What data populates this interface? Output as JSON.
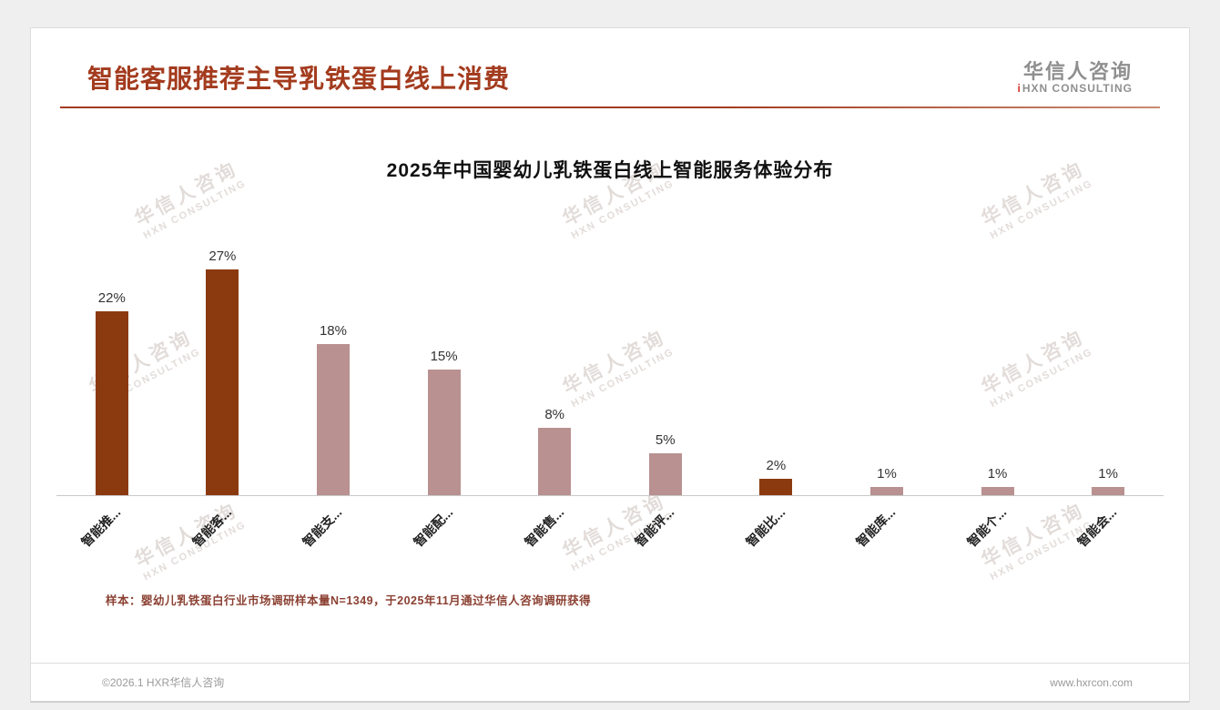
{
  "header": {
    "title": "智能客服推荐主导乳铁蛋白线上消费",
    "logo": {
      "accent": "i",
      "cn": "华信人咨询",
      "en": "HXN CONSULTING"
    }
  },
  "watermark": {
    "line1": "华信人咨询",
    "line2": "HXN CONSULTING"
  },
  "chart_data": {
    "type": "bar",
    "title": "2025年中国婴幼儿乳铁蛋白线上智能服务体验分布",
    "categories": [
      "智能推...",
      "智能客...",
      "智能支...",
      "智能配...",
      "智能售...",
      "智能评...",
      "智能比...",
      "智能库...",
      "智能个...",
      "智能会..."
    ],
    "values": [
      22,
      27,
      18,
      15,
      8,
      5,
      2,
      1,
      1,
      1
    ],
    "value_labels": [
      "22%",
      "27%",
      "18%",
      "15%",
      "8%",
      "5%",
      "2%",
      "1%",
      "1%",
      "1%"
    ],
    "unit": "%",
    "bar_colors": [
      "#8b3a10",
      "#8b3a10",
      "#b89190",
      "#b89190",
      "#b89190",
      "#b89190",
      "#8b3a10",
      "#b89190",
      "#b89190",
      "#b89190"
    ],
    "color_dark": "#8b3a10",
    "color_light": "#b89190",
    "ylim": [
      0,
      30
    ],
    "grid": false,
    "legend": "none",
    "xlabel": "",
    "ylabel": ""
  },
  "footnote": "样本：婴幼儿乳铁蛋白行业市场调研样本量N=1349，于2025年11月通过华信人咨询调研获得",
  "footer": {
    "left": "©2026.1 HXR华信人咨询",
    "right": "www.hxrcon.com"
  }
}
